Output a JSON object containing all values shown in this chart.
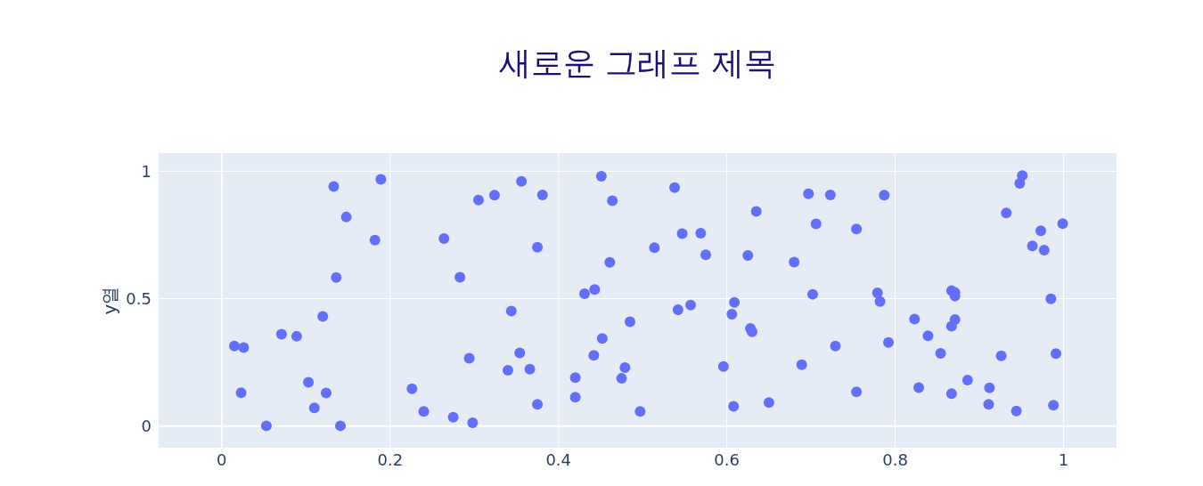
{
  "chart_data": {
    "type": "scatter",
    "title": "새로운 그래프 제목",
    "ylabel": "y열",
    "xlim": [
      -0.075,
      1.063
    ],
    "ylim": [
      -0.085,
      1.071
    ],
    "xticks": [
      0,
      0.2,
      0.4,
      0.6,
      0.8,
      1
    ],
    "yticks": [
      0,
      0.5,
      1
    ],
    "grid": true,
    "marker": "circle",
    "series": [
      {
        "color": "#636efa",
        "x": [
          0.015,
          0.026,
          0.023,
          0.053,
          0.071,
          0.089,
          0.103,
          0.11,
          0.12,
          0.124,
          0.133,
          0.136,
          0.141,
          0.148,
          0.182,
          0.189,
          0.226,
          0.24,
          0.264,
          0.275,
          0.283,
          0.294,
          0.298,
          0.305,
          0.324,
          0.34,
          0.344,
          0.354,
          0.356,
          0.366,
          0.375,
          0.375,
          0.381,
          0.42,
          0.42,
          0.431,
          0.443,
          0.442,
          0.451,
          0.452,
          0.461,
          0.464,
          0.475,
          0.479,
          0.485,
          0.497,
          0.514,
          0.538,
          0.542,
          0.547,
          0.557,
          0.569,
          0.575,
          0.596,
          0.606,
          0.608,
          0.609,
          0.625,
          0.628,
          0.63,
          0.635,
          0.65,
          0.68,
          0.689,
          0.697,
          0.702,
          0.706,
          0.723,
          0.729,
          0.754,
          0.754,
          0.779,
          0.782,
          0.787,
          0.792,
          0.823,
          0.828,
          0.839,
          0.854,
          0.867,
          0.867,
          0.867,
          0.871,
          0.871,
          0.871,
          0.886,
          0.911,
          0.912,
          0.926,
          0.932,
          0.944,
          0.948,
          0.951,
          0.963,
          0.973,
          0.977,
          0.985,
          0.988,
          0.991,
          0.999
        ],
        "values": [
          0.314,
          0.308,
          0.131,
          0.001,
          0.36,
          0.352,
          0.172,
          0.071,
          0.43,
          0.13,
          0.94,
          0.583,
          0.001,
          0.82,
          0.73,
          0.968,
          0.146,
          0.057,
          0.736,
          0.035,
          0.584,
          0.266,
          0.013,
          0.887,
          0.906,
          0.219,
          0.451,
          0.287,
          0.96,
          0.223,
          0.085,
          0.702,
          0.907,
          0.19,
          0.113,
          0.519,
          0.536,
          0.277,
          0.98,
          0.344,
          0.642,
          0.884,
          0.187,
          0.229,
          0.409,
          0.057,
          0.7,
          0.936,
          0.456,
          0.755,
          0.475,
          0.757,
          0.672,
          0.234,
          0.439,
          0.077,
          0.485,
          0.669,
          0.383,
          0.37,
          0.842,
          0.092,
          0.643,
          0.241,
          0.911,
          0.517,
          0.793,
          0.907,
          0.314,
          0.773,
          0.134,
          0.523,
          0.489,
          0.906,
          0.328,
          0.42,
          0.151,
          0.354,
          0.285,
          0.531,
          0.392,
          0.127,
          0.524,
          0.51,
          0.418,
          0.18,
          0.085,
          0.15,
          0.276,
          0.836,
          0.059,
          0.952,
          0.983,
          0.707,
          0.766,
          0.69,
          0.499,
          0.082,
          0.284,
          0.794
        ]
      }
    ]
  }
}
